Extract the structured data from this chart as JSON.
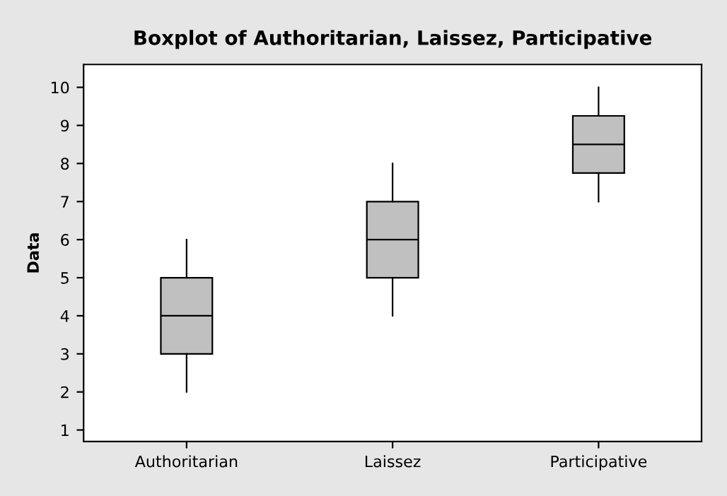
{
  "chart_data": {
    "type": "box",
    "title": "Boxplot of Authoritarian, Laissez, Participative",
    "ylabel": "Data",
    "categories": [
      "Authoritarian",
      "Laissez",
      "Participative"
    ],
    "boxes": [
      {
        "low": 2,
        "q1": 3,
        "median": 4,
        "q3": 5,
        "high": 6
      },
      {
        "low": 4,
        "q1": 5,
        "median": 6,
        "q3": 7,
        "high": 8
      },
      {
        "low": 7,
        "q1": 7.75,
        "median": 8.5,
        "q3": 9.25,
        "high": 10
      }
    ],
    "color": "#c0c0c0",
    "ylim": [
      0.7,
      10.6
    ],
    "yticks": [
      1,
      2,
      3,
      4,
      5,
      6,
      7,
      8,
      9,
      10
    ],
    "grid": false
  }
}
